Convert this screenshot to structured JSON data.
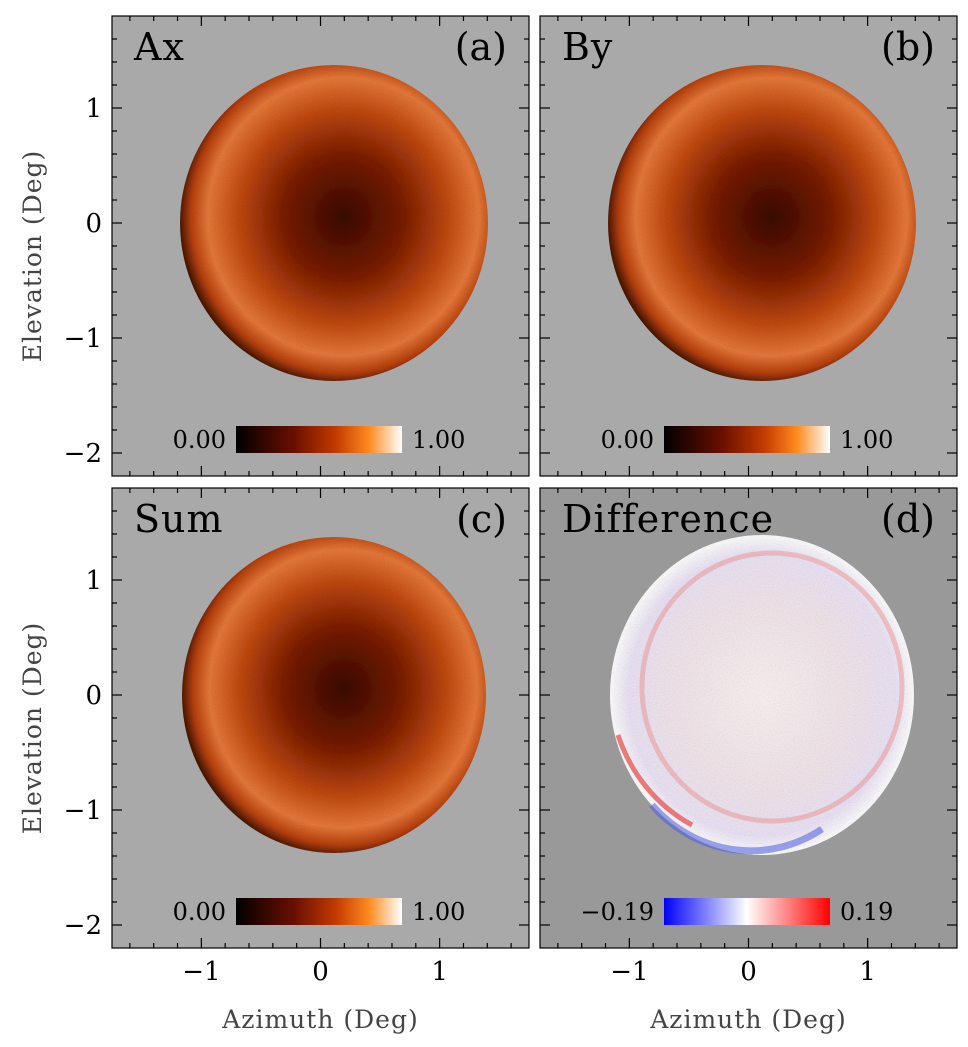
{
  "chart_data": [
    {
      "type": "heatmap",
      "panel_label": "(a)",
      "title": "Ax",
      "xlabel": "",
      "ylabel": "Elevation (Deg)",
      "xlim": [
        -1.75,
        1.75
      ],
      "ylim": [
        -2.2,
        1.8
      ],
      "xticks": [],
      "yticks": [
        "−2",
        "−1",
        "0",
        "1"
      ],
      "colorbar": {
        "min_label": "0.00",
        "max_label": "1.00",
        "colormap": "hot"
      },
      "background": "#a9a9a9"
    },
    {
      "type": "heatmap",
      "panel_label": "(b)",
      "title": "By",
      "xlabel": "",
      "ylabel": "",
      "xlim": [
        -1.75,
        1.75
      ],
      "ylim": [
        -2.2,
        1.8
      ],
      "xticks": [],
      "yticks": [],
      "colorbar": {
        "min_label": "0.00",
        "max_label": "1.00",
        "colormap": "hot"
      },
      "background": "#a9a9a9"
    },
    {
      "type": "heatmap",
      "panel_label": "(c)",
      "title": "Sum",
      "xlabel": "Azimuth (Deg)",
      "ylabel": "Elevation (Deg)",
      "xlim": [
        -1.75,
        1.75
      ],
      "ylim": [
        -2.2,
        1.8
      ],
      "xticks": [
        "−1",
        "0",
        "1"
      ],
      "yticks": [
        "−2",
        "−1",
        "0",
        "1"
      ],
      "colorbar": {
        "min_label": "0.00",
        "max_label": "1.00",
        "colormap": "hot"
      },
      "background": "#a9a9a9"
    },
    {
      "type": "heatmap",
      "panel_label": "(d)",
      "title": "Difference",
      "xlabel": "Azimuth (Deg)",
      "ylabel": "",
      "xlim": [
        -1.75,
        1.75
      ],
      "ylim": [
        -2.2,
        1.8
      ],
      "xticks": [
        "−1",
        "0",
        "1"
      ],
      "yticks": [],
      "colorbar": {
        "min_label": "−0.19",
        "max_label": "0.19",
        "colormap": "bwr"
      },
      "background": "#999999"
    }
  ]
}
